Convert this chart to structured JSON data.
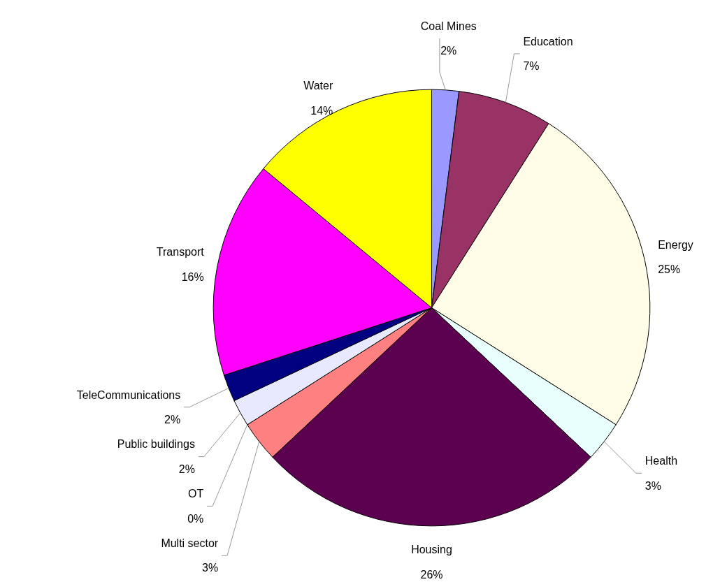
{
  "chart_data": {
    "type": "pie",
    "categories": [
      "Coal Mines",
      "Education",
      "Energy",
      "Health",
      "Housing",
      "Multi sector",
      "OT",
      "Public buildings",
      "TeleCommunications",
      "Transport",
      "Water"
    ],
    "values": [
      2,
      7,
      25,
      3,
      26,
      3,
      0,
      2,
      2,
      16,
      14
    ],
    "value_labels": [
      "2%",
      "7%",
      "25%",
      "3%",
      "26%",
      "3%",
      "0%",
      "2%",
      "2%",
      "16%",
      "14%"
    ],
    "colors": [
      "#9999ff",
      "#993366",
      "#fffde8",
      "#e8fffd",
      "#5c0050",
      "#ff8080",
      "#0066cc",
      "#e8e8ff",
      "#000080",
      "#ff00ff",
      "#ffff00"
    ]
  }
}
